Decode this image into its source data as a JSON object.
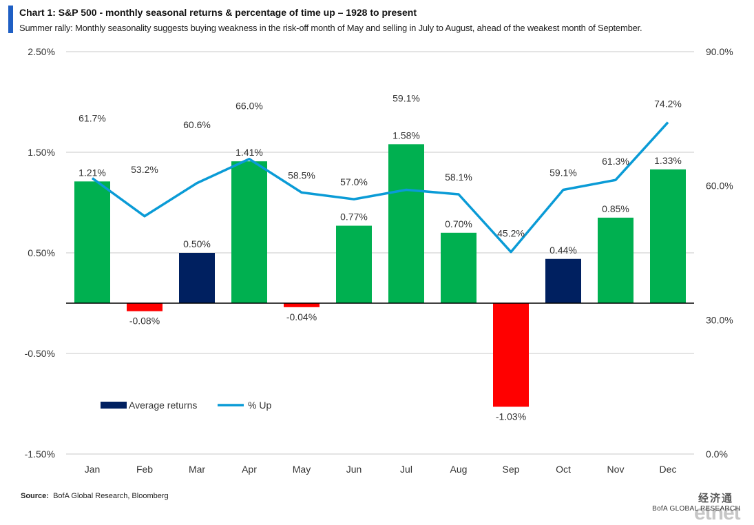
{
  "header": {
    "title": "Chart 1: S&P 500 - monthly seasonal returns & percentage of time up – 1928  to present",
    "subtitle": "Summer rally:  Monthly seasonality suggests buying weakness in the risk-off month of May and selling in July to August, ahead of the weakest month of September."
  },
  "chart_data": {
    "type": "bar",
    "categories": [
      "Jan",
      "Feb",
      "Mar",
      "Apr",
      "May",
      "Jun",
      "Jul",
      "Aug",
      "Sep",
      "Oct",
      "Nov",
      "Dec"
    ],
    "series": [
      {
        "name": "Average returns",
        "type": "bar",
        "axis": "left",
        "values": [
          1.21,
          -0.08,
          0.5,
          1.41,
          -0.04,
          0.77,
          1.58,
          0.7,
          -1.03,
          0.44,
          0.85,
          1.33
        ],
        "labels": [
          "1.21%",
          "-0.08%",
          "0.50%",
          "1.41%",
          "-0.04%",
          "0.77%",
          "1.58%",
          "0.70%",
          "-1.03%",
          "0.44%",
          "0.85%",
          "1.33%"
        ]
      },
      {
        "name": "% Up",
        "type": "line",
        "axis": "right",
        "values": [
          61.7,
          53.2,
          60.6,
          66.0,
          58.5,
          57.0,
          59.1,
          58.1,
          45.2,
          59.1,
          61.3,
          74.2
        ],
        "labels": [
          "61.7%",
          "53.2%",
          "60.6%",
          "66.0%",
          "58.5%",
          "57.0%",
          "59.1%",
          "58.1%",
          "45.2%",
          "59.1%",
          "61.3%",
          "74.2%"
        ]
      }
    ],
    "bar_colors": [
      "#00b050",
      "#ff0000",
      "#002060",
      "#00b050",
      "#ff0000",
      "#00b050",
      "#00b050",
      "#00b050",
      "#ff0000",
      "#002060",
      "#00b050",
      "#00b050"
    ],
    "line_color": "#0a9bd6",
    "ylim_left": [
      -1.5,
      2.5
    ],
    "ylim_right": [
      0,
      90
    ],
    "left_ticks": [
      "2.50%",
      "1.50%",
      "0.50%",
      "-0.50%",
      "-1.50%"
    ],
    "left_tick_values": [
      2.5,
      1.5,
      0.5,
      -0.5,
      -1.5
    ],
    "right_ticks": [
      "90.0%",
      "60.0%",
      "30.0%",
      "0.0%"
    ],
    "right_tick_values": [
      90,
      60,
      30,
      0
    ],
    "grid": true,
    "legend": [
      {
        "label": "Average returns",
        "color": "#002060",
        "kind": "bar"
      },
      {
        "label": "% Up",
        "color": "#0a9bd6",
        "kind": "line"
      }
    ],
    "legend_position": "lower-left"
  },
  "footer": {
    "source_label": "Source:",
    "source_text": "BofA Global Research, Bloomberg",
    "brand": "BofA GLOBAL RESEARCH",
    "watermark_cn": "经济通",
    "watermark_et": "etnet"
  }
}
